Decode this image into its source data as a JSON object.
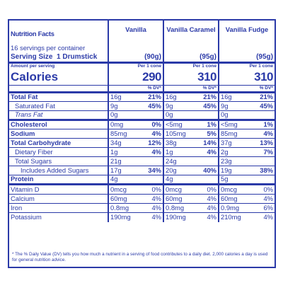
{
  "title": "Nutrition Facts",
  "servings_per_container": "16 servings per container",
  "serving_size_label": "Serving Size",
  "serving_size_value": "1 Drumstick",
  "amount_per_serving": "Amount per serving",
  "calories_label": "Calories",
  "per_label": "Per 1 cone",
  "dv_header": "% DV*",
  "columns": [
    {
      "name": "Vanilla",
      "serving_grams": "(90g)",
      "calories": "290"
    },
    {
      "name": "Vanilla Caramel",
      "serving_grams": "(95g)",
      "calories": "310"
    },
    {
      "name": "Vanilla Fudge",
      "serving_grams": "(95g)",
      "calories": "310"
    }
  ],
  "nutrients": [
    {
      "label": "Total Fat",
      "v": [
        [
          "16g",
          "21%"
        ],
        [
          "16g",
          "21%"
        ],
        [
          "16g",
          "21%"
        ]
      ]
    },
    {
      "label": "Saturated Fat",
      "v": [
        [
          "9g",
          "45%"
        ],
        [
          "9g",
          "45%"
        ],
        [
          "9g",
          "45%"
        ]
      ]
    },
    {
      "label": "Trans Fat",
      "v": [
        [
          "0g",
          ""
        ],
        [
          "0g",
          ""
        ],
        [
          "0g",
          ""
        ]
      ]
    },
    {
      "label": "Cholesterol",
      "v": [
        [
          "0mg",
          "0%"
        ],
        [
          "<5mg",
          "1%"
        ],
        [
          "<5mg",
          "1%"
        ]
      ]
    },
    {
      "label": "Sodium",
      "v": [
        [
          "85mg",
          "4%"
        ],
        [
          "105mg",
          "5%"
        ],
        [
          "85mg",
          "4%"
        ]
      ]
    },
    {
      "label": "Total Carbohydrate",
      "v": [
        [
          "34g",
          "12%"
        ],
        [
          "38g",
          "14%"
        ],
        [
          "37g",
          "13%"
        ]
      ]
    },
    {
      "label": "Dietary Fiber",
      "v": [
        [
          "1g",
          "4%"
        ],
        [
          "1g",
          "4%"
        ],
        [
          "2g",
          "7%"
        ]
      ]
    },
    {
      "label": "Total Sugars",
      "v": [
        [
          "21g",
          ""
        ],
        [
          "24g",
          ""
        ],
        [
          "23g",
          ""
        ]
      ]
    },
    {
      "label": "Includes Added Sugars",
      "v": [
        [
          "17g",
          "34%"
        ],
        [
          "20g",
          "40%"
        ],
        [
          "19g",
          "38%"
        ]
      ]
    },
    {
      "label": "Protein",
      "v": [
        [
          "4g",
          ""
        ],
        [
          "4g",
          ""
        ],
        [
          "5g",
          ""
        ]
      ]
    },
    {
      "label": "Vitamin D",
      "v": [
        [
          "0mcg",
          "0%"
        ],
        [
          "0mcg",
          "0%"
        ],
        [
          "0mcg",
          "0%"
        ]
      ]
    },
    {
      "label": "Calcium",
      "v": [
        [
          "60mg",
          "4%"
        ],
        [
          "60mg",
          "4%"
        ],
        [
          "60mg",
          "4%"
        ]
      ]
    },
    {
      "label": "Iron",
      "v": [
        [
          "0.8mg",
          "4%"
        ],
        [
          "0.8mg",
          "4%"
        ],
        [
          "0.9mg",
          "6%"
        ]
      ]
    },
    {
      "label": "Potassium",
      "v": [
        [
          "190mg",
          "4%"
        ],
        [
          "190mg",
          "4%"
        ],
        [
          "210mg",
          "4%"
        ]
      ]
    }
  ],
  "footnote": "* The % Daily Value (DV) tells you how much a nutrient in a serving of food contributes to a daily diet. 2,000 calories a day is used for general nutrition advice.",
  "colors": {
    "ink": "#2b3aa8",
    "background": "#ffffff"
  }
}
